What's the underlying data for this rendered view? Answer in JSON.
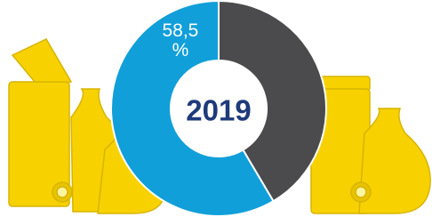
{
  "chart_data": {
    "type": "pie",
    "title": "2019",
    "categories": [
      null,
      null
    ],
    "values": [
      58.5,
      41.5
    ],
    "value_labels": [
      "58,5 %",
      null
    ],
    "colors": [
      "#119fd9",
      "#4b4b4d"
    ],
    "donut": true
  }
}
